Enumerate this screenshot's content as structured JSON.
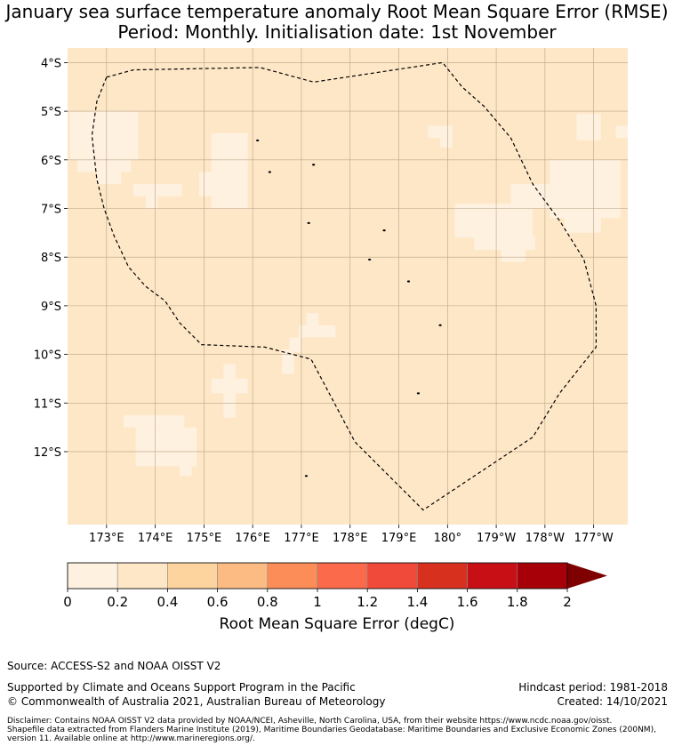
{
  "header": {
    "title_line1": "January sea surface temperature anomaly Root Mean Square Error (RMSE)",
    "title_line2": "Period: Monthly. Initialisation date: 1st November"
  },
  "colors": {
    "ocean_base": "#FEE7C6",
    "low_patch": "#FFF1DF",
    "boundary": "#000000",
    "grid": "#B8A489"
  },
  "map": {
    "x_ticks": [
      {
        "lon": 173,
        "label": "173°E"
      },
      {
        "lon": 174,
        "label": "174°E"
      },
      {
        "lon": 175,
        "label": "175°E"
      },
      {
        "lon": 176,
        "label": "176°E"
      },
      {
        "lon": 177,
        "label": "177°E"
      },
      {
        "lon": 178,
        "label": "178°E"
      },
      {
        "lon": 179,
        "label": "179°E"
      },
      {
        "lon": 180,
        "label": "180°"
      },
      {
        "lon": 181,
        "label": "179°W"
      },
      {
        "lon": 182,
        "label": "178°W"
      },
      {
        "lon": 183,
        "label": "177°W"
      }
    ],
    "y_ticks": [
      {
        "lat": -4,
        "label": "4°S"
      },
      {
        "lat": -5,
        "label": "5°S"
      },
      {
        "lat": -6,
        "label": "6°S"
      },
      {
        "lat": -7,
        "label": "7°S"
      },
      {
        "lat": -8,
        "label": "8°S"
      },
      {
        "lat": -9,
        "label": "9°S"
      },
      {
        "lat": -10,
        "label": "10°S"
      },
      {
        "lat": -11,
        "label": "11°S"
      },
      {
        "lat": -12,
        "label": "12°S"
      }
    ],
    "lon_range": [
      172.2,
      183.7
    ],
    "lat_range": [
      -13.5,
      -3.7
    ],
    "eez_boundary": [
      [
        173.0,
        -4.3
      ],
      [
        173.55,
        -4.15
      ],
      [
        176.15,
        -4.1
      ],
      [
        177.25,
        -4.4
      ],
      [
        179.9,
        -4.0
      ],
      [
        180.3,
        -4.5
      ],
      [
        180.75,
        -4.9
      ],
      [
        181.3,
        -5.55
      ],
      [
        181.75,
        -6.5
      ],
      [
        182.3,
        -7.25
      ],
      [
        182.8,
        -8.05
      ],
      [
        183.05,
        -9.0
      ],
      [
        183.05,
        -9.85
      ],
      [
        182.3,
        -10.8
      ],
      [
        181.75,
        -11.7
      ],
      [
        179.5,
        -13.2
      ],
      [
        178.1,
        -11.8
      ],
      [
        177.2,
        -10.1
      ],
      [
        176.25,
        -9.85
      ],
      [
        174.95,
        -9.8
      ],
      [
        174.5,
        -9.35
      ],
      [
        174.2,
        -8.9
      ],
      [
        173.8,
        -8.6
      ],
      [
        173.45,
        -8.2
      ],
      [
        173.15,
        -7.55
      ],
      [
        172.95,
        -7.0
      ],
      [
        172.8,
        -6.4
      ],
      [
        172.7,
        -5.5
      ],
      [
        172.8,
        -4.8
      ]
    ],
    "low_error_cells": [
      [
        172.25,
        -5.0,
        1.4,
        1.0
      ],
      [
        172.4,
        -5.95,
        1.1,
        0.3
      ],
      [
        172.8,
        -6.0,
        0.5,
        0.5
      ],
      [
        173.55,
        -6.5,
        1.0,
        0.25
      ],
      [
        173.8,
        -6.75,
        0.25,
        0.25
      ],
      [
        175.15,
        -5.45,
        0.75,
        1.55
      ],
      [
        174.9,
        -6.25,
        0.3,
        0.5
      ],
      [
        175.4,
        -10.2,
        0.25,
        0.3
      ],
      [
        175.15,
        -10.5,
        0.75,
        0.3
      ],
      [
        175.4,
        -10.8,
        0.25,
        0.5
      ],
      [
        173.35,
        -11.25,
        1.25,
        0.25
      ],
      [
        173.6,
        -11.5,
        1.25,
        0.8
      ],
      [
        174.5,
        -12.25,
        0.25,
        0.25
      ],
      [
        176.75,
        -9.65,
        0.25,
        0.3
      ],
      [
        176.6,
        -9.9,
        0.25,
        0.5
      ],
      [
        176.95,
        -9.4,
        0.75,
        0.25
      ],
      [
        177.1,
        -9.15,
        0.25,
        0.25
      ],
      [
        179.6,
        -5.3,
        0.5,
        0.25
      ],
      [
        179.85,
        -5.5,
        0.25,
        0.25
      ],
      [
        180.15,
        -6.9,
        1.6,
        0.7
      ],
      [
        180.55,
        -7.55,
        1.25,
        0.3
      ],
      [
        181.1,
        -7.8,
        0.5,
        0.3
      ],
      [
        181.3,
        -6.5,
        1.25,
        0.5
      ],
      [
        182.1,
        -6.0,
        1.45,
        1.2
      ],
      [
        182.4,
        -7.2,
        0.75,
        0.3
      ],
      [
        182.65,
        -5.05,
        0.5,
        0.55
      ],
      [
        183.45,
        -5.3,
        0.25,
        0.25
      ]
    ],
    "islands": [
      [
        176.1,
        -5.6
      ],
      [
        176.35,
        -6.25
      ],
      [
        177.25,
        -6.1
      ],
      [
        177.15,
        -7.3
      ],
      [
        178.7,
        -7.45
      ],
      [
        178.4,
        -8.05
      ],
      [
        179.2,
        -8.5
      ],
      [
        179.85,
        -9.4
      ],
      [
        179.4,
        -10.8
      ],
      [
        177.1,
        -12.5
      ]
    ]
  },
  "colorbar": {
    "boundaries": [
      0,
      0.2,
      0.4,
      0.6,
      0.8,
      1,
      1.2,
      1.4,
      1.6,
      1.8,
      2
    ],
    "tick_labels": [
      "0",
      "0.2",
      "0.4",
      "0.6",
      "0.8",
      "1",
      "1.2",
      "1.4",
      "1.6",
      "1.8",
      "2"
    ],
    "colors": [
      "#FFF1DF",
      "#FEE7C6",
      "#FDD49E",
      "#FDBB84",
      "#FC8D59",
      "#FB6A4A",
      "#EF4A3A",
      "#D7301F",
      "#C80F16",
      "#A80008"
    ],
    "extend_color": "#7F0000",
    "label": "Root Mean Square Error (degC)"
  },
  "footer": {
    "source": "Source: ACCESS-S2 and NOAA OISST V2",
    "support": "Supported by Climate and Oceans Support Program in the Pacific",
    "copyright": "© Commonwealth of Australia 2021, Australian Bureau of Meteorology",
    "hindcast": "Hindcast period: 1981-2018",
    "created": "Created: 14/10/2021",
    "disclaimer_1": "Disclaimer: Contains NOAA OISST V2 data provided by NOAA/NCEI, Asheville, North Carolina, USA, from their website https://www.ncdc.noaa.gov/oisst.",
    "disclaimer_2": "Shapefile data extracted from Flanders Marine Institute (2019), Maritime Boundaries Geodatabase: Maritime Boundaries and Exclusive Economic Zones (200NM),",
    "disclaimer_3": "version 11. Available online at http://www.marineregions.org/."
  }
}
